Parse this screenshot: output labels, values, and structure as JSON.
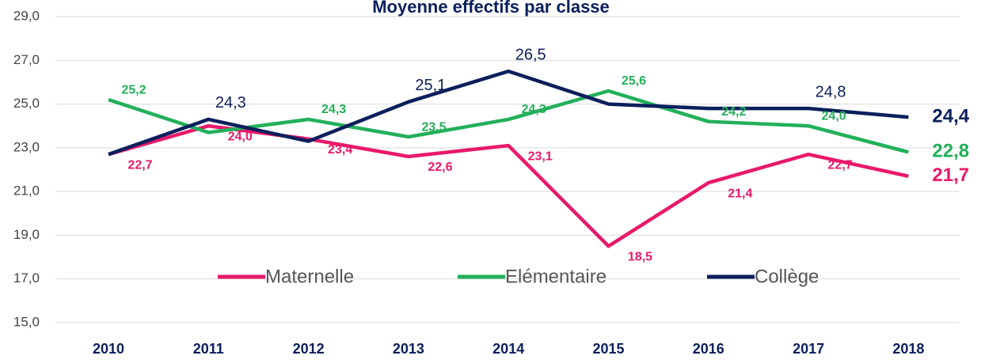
{
  "chart_data": {
    "type": "line",
    "title": "Moyenne effectifs par classe",
    "categories": [
      "2010",
      "2011",
      "2012",
      "2013",
      "2014",
      "2015",
      "2016",
      "2017",
      "2018"
    ],
    "series": [
      {
        "name": "Maternelle",
        "color": "#e8196a",
        "values": [
          22.7,
          24.0,
          23.4,
          22.6,
          23.1,
          18.5,
          21.4,
          22.7,
          21.7
        ],
        "value_labels": [
          "22,7",
          "24,0",
          "23,4",
          "22,6",
          "23,1",
          "18,5",
          "21,4",
          "22,7",
          "21,7"
        ]
      },
      {
        "name": "Elémentaire",
        "color": "#22b05a",
        "values": [
          25.2,
          23.7,
          24.3,
          23.5,
          24.3,
          25.6,
          24.2,
          24.0,
          22.8
        ],
        "value_labels": [
          "25,2",
          null,
          "24,3",
          "23,5",
          "24,3",
          "25,6",
          "24,2",
          "24,0",
          "22,8"
        ]
      },
      {
        "name": "Collège",
        "color": "#0b1f5c",
        "values": [
          22.7,
          24.3,
          23.3,
          25.1,
          26.5,
          25.0,
          24.8,
          24.8,
          24.4
        ],
        "value_labels": [
          null,
          "24,3",
          null,
          "25,1",
          "26,5",
          null,
          null,
          "24,8",
          "24,4"
        ]
      }
    ],
    "ylim": [
      15,
      29
    ],
    "yticks": [
      {
        "value": 15,
        "label": "15,0"
      },
      {
        "value": 17,
        "label": "17,0"
      },
      {
        "value": 19,
        "label": "19,0"
      },
      {
        "value": 21,
        "label": "21,0"
      },
      {
        "value": 23,
        "label": "23,0"
      },
      {
        "value": 25,
        "label": "25,0"
      },
      {
        "value": 27,
        "label": "27,0"
      },
      {
        "value": 29,
        "label": "29,0"
      }
    ],
    "grid": true
  }
}
